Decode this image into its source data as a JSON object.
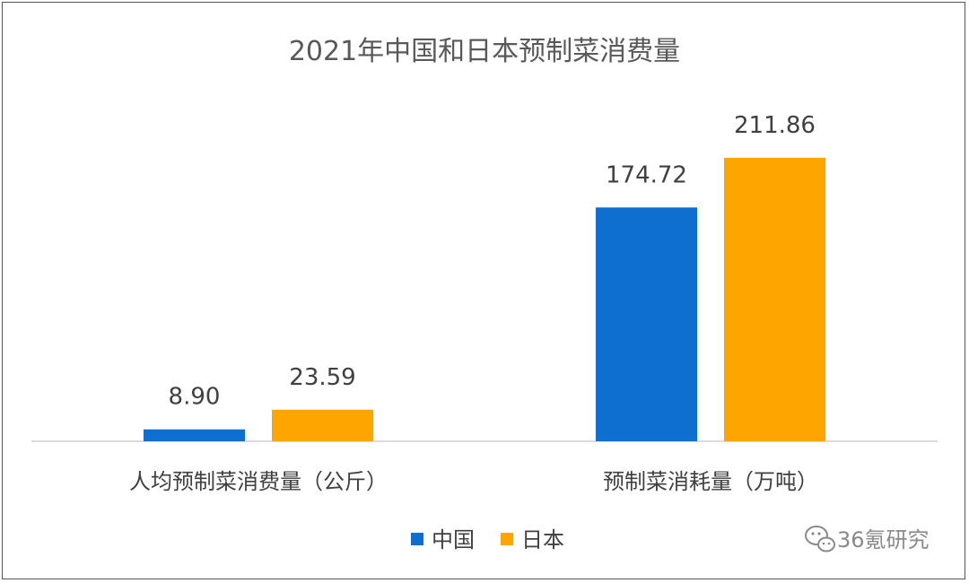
{
  "chart_data": {
    "type": "bar",
    "title": "2021年中国和日本预制菜消费量",
    "categories": [
      "人均预制菜消费量（公斤）",
      "预制菜消耗量（万吨）"
    ],
    "series": [
      {
        "name": "中国",
        "color": "#0f6fd1",
        "values": [
          8.9,
          174.72
        ]
      },
      {
        "name": "日本",
        "color": "#ffa500",
        "values": [
          23.59,
          211.86
        ]
      }
    ],
    "value_labels": [
      [
        "8.90",
        "174.72"
      ],
      [
        "23.59",
        "211.86"
      ]
    ],
    "ylim": [
      0,
      300
    ],
    "legend_position": "bottom",
    "grid": false
  },
  "watermark": {
    "icon": "wechat-icon",
    "text": "36氪研究"
  }
}
